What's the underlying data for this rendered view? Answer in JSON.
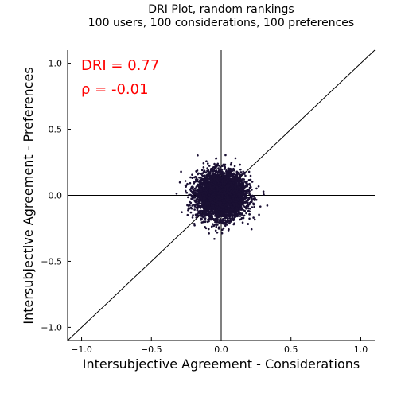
{
  "chart_data": {
    "type": "scatter",
    "title_lines": [
      "DRI Plot, random rankings",
      "100 users, 100 considerations, 100 preferences"
    ],
    "xlabel": "Intersubjective Agreement - Considerations",
    "ylabel": "Intersubjective Agreement - Preferences",
    "xlim": [
      -1.1,
      1.1
    ],
    "ylim": [
      -1.1,
      1.1
    ],
    "x_ticks": [
      -1.0,
      -0.5,
      0.0,
      0.5,
      1.0
    ],
    "x_tick_labels": [
      "−1.0",
      "−0.5",
      "0.0",
      "0.5",
      "1.0"
    ],
    "y_ticks": [
      -1.0,
      -0.5,
      0.0,
      0.5,
      1.0
    ],
    "y_tick_labels": [
      "−1.0",
      "−0.5",
      "0.0",
      "0.5",
      "1.0"
    ],
    "grid": false,
    "reference_lines": [
      "x=0",
      "y=0",
      "y=x"
    ],
    "annotations": [
      {
        "text": "DRI = 0.77",
        "color": "#ff0000"
      },
      {
        "text": "ρ = -0.01",
        "color": "#ff0000"
      }
    ],
    "series": [
      {
        "color": "#1a1033",
        "cluster_center": [
          0.0,
          0.0
        ],
        "x_range": [
          -0.37,
          0.33
        ],
        "y_range": [
          -0.33,
          0.38
        ],
        "approx_point_count": 4950
      }
    ]
  }
}
